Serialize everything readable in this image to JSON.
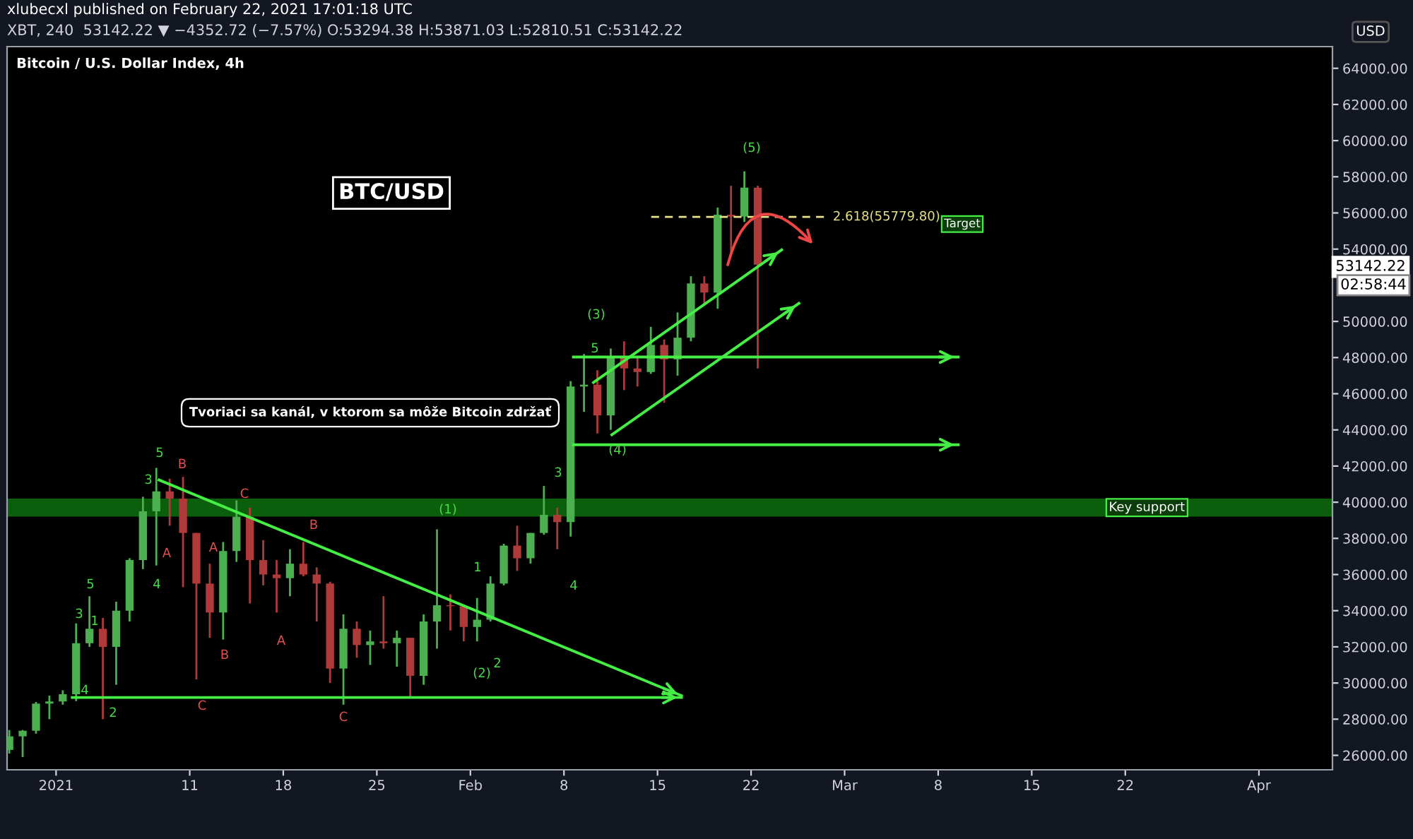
{
  "chart_data": {
    "type": "candlestick",
    "title": "Bitcoin / U.S. Dollar Index, 4h",
    "x": [
      "2020-12-28T12:00",
      "2020-12-29T12:00",
      "2020-12-30T12:00",
      "2020-12-31T12:00",
      "2021-01-01T12:00",
      "2021-01-02T12:00",
      "2021-01-03T12:00",
      "2021-01-04T12:00",
      "2021-01-05T12:00",
      "2021-01-06T12:00",
      "2021-01-07T12:00",
      "2021-01-08T12:00",
      "2021-01-09T12:00",
      "2021-01-10T12:00",
      "2021-01-11T12:00",
      "2021-01-12T12:00",
      "2021-01-13T12:00",
      "2021-01-14T12:00",
      "2021-01-15T12:00",
      "2021-01-16T12:00",
      "2021-01-17T12:00",
      "2021-01-18T12:00",
      "2021-01-19T12:00",
      "2021-01-20T12:00",
      "2021-01-21T12:00",
      "2021-01-22T12:00",
      "2021-01-23T12:00",
      "2021-01-24T12:00",
      "2021-01-25T12:00",
      "2021-01-26T12:00",
      "2021-01-27T12:00",
      "2021-01-28T12:00",
      "2021-01-29T12:00",
      "2021-01-30T12:00",
      "2021-01-31T12:00",
      "2021-02-01T12:00",
      "2021-02-02T12:00",
      "2021-02-03T12:00",
      "2021-02-04T12:00",
      "2021-02-05T12:00",
      "2021-02-06T12:00",
      "2021-02-07T12:00",
      "2021-02-08T12:00",
      "2021-02-09T12:00",
      "2021-02-10T12:00",
      "2021-02-11T12:00",
      "2021-02-12T12:00",
      "2021-02-13T12:00",
      "2021-02-14T12:00",
      "2021-02-15T12:00",
      "2021-02-16T12:00",
      "2021-02-17T12:00",
      "2021-02-18T12:00",
      "2021-02-19T12:00",
      "2021-02-20T12:00",
      "2021-02-21T12:00",
      "2021-02-22T12:00"
    ],
    "ohlc": [
      [
        26300,
        27400,
        26100,
        27050
      ],
      [
        27050,
        27400,
        25900,
        27360
      ],
      [
        27360,
        28950,
        27200,
        28860
      ],
      [
        28860,
        29300,
        28000,
        28980
      ],
      [
        28980,
        29600,
        28800,
        29380
      ],
      [
        29380,
        33300,
        29000,
        32200
      ],
      [
        32200,
        34800,
        32000,
        33000
      ],
      [
        33000,
        33600,
        28000,
        32000
      ],
      [
        32000,
        34500,
        29900,
        34000
      ],
      [
        34000,
        36900,
        33400,
        36800
      ],
      [
        36800,
        40300,
        36300,
        39500
      ],
      [
        39500,
        41900,
        36500,
        40600
      ],
      [
        40600,
        41300,
        38700,
        40200
      ],
      [
        40200,
        41400,
        35300,
        38300
      ],
      [
        38300,
        38300,
        30200,
        35500
      ],
      [
        35500,
        36600,
        32500,
        33900
      ],
      [
        33900,
        37800,
        32400,
        37300
      ],
      [
        37300,
        40100,
        36700,
        39200
      ],
      [
        39200,
        39700,
        34400,
        36800
      ],
      [
        36800,
        37900,
        35400,
        36000
      ],
      [
        36000,
        36800,
        33900,
        35800
      ],
      [
        35800,
        37400,
        34800,
        36600
      ],
      [
        36600,
        37800,
        35900,
        36000
      ],
      [
        36000,
        36400,
        33400,
        35500
      ],
      [
        35500,
        35600,
        30000,
        30800
      ],
      [
        30800,
        33800,
        28800,
        33000
      ],
      [
        33000,
        33400,
        31400,
        32100
      ],
      [
        32100,
        32900,
        31000,
        32300
      ],
      [
        32300,
        34800,
        31900,
        32200
      ],
      [
        32200,
        32900,
        30900,
        32500
      ],
      [
        32500,
        32500,
        29200,
        30400
      ],
      [
        30400,
        33800,
        29900,
        33400
      ],
      [
        33400,
        38500,
        31900,
        34300
      ],
      [
        34300,
        34900,
        32900,
        34250
      ],
      [
        34250,
        34300,
        32300,
        33100
      ],
      [
        33100,
        34700,
        32300,
        33500
      ],
      [
        33500,
        35900,
        33400,
        35500
      ],
      [
        35500,
        37700,
        35400,
        37600
      ],
      [
        37600,
        38700,
        36200,
        36900
      ],
      [
        36900,
        38300,
        36600,
        38300
      ],
      [
        38300,
        40900,
        38200,
        39300
      ],
      [
        39300,
        39700,
        37400,
        38900
      ],
      [
        38900,
        46700,
        38100,
        46400
      ],
      [
        46400,
        48200,
        45000,
        46500
      ],
      [
        46500,
        47300,
        43800,
        44800
      ],
      [
        44800,
        48500,
        44000,
        48000
      ],
      [
        48000,
        48900,
        46200,
        47400
      ],
      [
        47400,
        48000,
        46400,
        47200
      ],
      [
        47200,
        49700,
        47100,
        48700
      ],
      [
        48700,
        49000,
        45500,
        47900
      ],
      [
        47900,
        50500,
        47000,
        49100
      ],
      [
        49100,
        52500,
        48900,
        52100
      ],
      [
        52100,
        52500,
        50900,
        51600
      ],
      [
        51600,
        56300,
        50700,
        55900
      ],
      [
        55900,
        57500,
        53800,
        55800
      ],
      [
        55800,
        58300,
        55500,
        57400
      ],
      [
        57400,
        57500,
        47400,
        53142.22
      ]
    ],
    "colors": [
      "#4caf50",
      "#4caf50",
      "#4caf50",
      "#4caf50",
      "#4caf50",
      "#4caf50",
      "#4caf50",
      "#b03a3a",
      "#4caf50",
      "#4caf50",
      "#4caf50",
      "#4caf50",
      "#b03a3a",
      "#b03a3a",
      "#b03a3a",
      "#b03a3a",
      "#4caf50",
      "#4caf50",
      "#b03a3a",
      "#b03a3a",
      "#b03a3a",
      "#4caf50",
      "#b03a3a",
      "#b03a3a",
      "#b03a3a",
      "#4caf50",
      "#b03a3a",
      "#4caf50",
      "#b03a3a",
      "#4caf50",
      "#b03a3a",
      "#4caf50",
      "#4caf50",
      "#b03a3a",
      "#b03a3a",
      "#4caf50",
      "#4caf50",
      "#4caf50",
      "#b03a3a",
      "#4caf50",
      "#4caf50",
      "#b03a3a",
      "#4caf50",
      "#4caf50",
      "#b03a3a",
      "#4caf50",
      "#b03a3a",
      "#b03a3a",
      "#4caf50",
      "#b03a3a",
      "#4caf50",
      "#4caf50",
      "#b03a3a",
      "#4caf50",
      "#b03a3a",
      "#4caf50",
      "#b03a3a"
    ],
    "series": [
      {
        "type": "line",
        "color": "#44ee44",
        "x": [
          "2021-01-08T17:00",
          "2021-02-16T19:00"
        ],
        "values": [
          41230,
          29300
        ]
      },
      {
        "type": "line",
        "color": "#44ee44",
        "x": [
          "2021-01-02T05:00",
          "2021-02-16T19:00"
        ],
        "values": [
          29200,
          29200
        ]
      },
      {
        "type": "line",
        "color": "#44ee44",
        "x": [
          "2021-02-10T05:00",
          "2021-02-24T07:00"
        ],
        "values": [
          46620,
          53960
        ]
      },
      {
        "type": "line",
        "color": "#44ee44",
        "x": [
          "2021-02-11T14:00",
          "2021-02-25T14:00"
        ],
        "values": [
          43730,
          51000
        ]
      },
      {
        "type": "line",
        "color": "#44ee44",
        "x": [
          "2021-02-08T17:00",
          "2021-03-09T12:00"
        ],
        "values": [
          48030,
          48030
        ]
      },
      {
        "type": "line",
        "color": "#44ee44",
        "x": [
          "2021-02-08T17:00",
          "2021-03-09T12:00"
        ],
        "values": [
          43180,
          43180
        ]
      }
    ],
    "ref_lines": [
      {
        "axis": "y",
        "value": 55779.8,
        "label": "2.618(55779.80)",
        "color": "#e8e08a",
        "line_style": "dashed"
      }
    ],
    "bands": [
      {
        "axis": "y",
        "from": 39200,
        "to": 40200,
        "label": "Key support",
        "color": "#0b5e0b"
      }
    ],
    "annotations": [
      "xlubecxl published on February 22, 2021 17:01:18 UTC",
      "XBT, 240  53142.22 ▼ −4352.72 (−7.57%) O:53294.38 H:53871.03 L:52810.51 C:53142.22",
      "BTC/USD",
      "Tvoriaci sa kanál, v ktorom sa môže Bitcoin zdržať",
      "Target",
      "53142.22",
      "02:58:44",
      "USD",
      "5",
      "3",
      "B",
      "A",
      "4",
      "A",
      "C",
      "B",
      "C",
      "A",
      "B",
      "C",
      "5",
      "3",
      "1",
      "4",
      "2",
      "(1)",
      "1",
      "(2)",
      "2",
      "3",
      "4",
      "(3)",
      "5",
      "(4)",
      "(5)"
    ],
    "xlim": [
      "2020-12-28T08:00",
      "2021-04-06T12:00"
    ],
    "xticks": [
      {
        "value": "2021-01-01",
        "label": "2021"
      },
      {
        "value": "2021-01-11",
        "label": "11"
      },
      {
        "value": "2021-01-18",
        "label": "18"
      },
      {
        "value": "2021-01-25",
        "label": "25"
      },
      {
        "value": "2021-02-01",
        "label": "Feb"
      },
      {
        "value": "2021-02-08",
        "label": "8"
      },
      {
        "value": "2021-02-15",
        "label": "15"
      },
      {
        "value": "2021-02-22",
        "label": "22"
      },
      {
        "value": "2021-03-01",
        "label": "Mar"
      },
      {
        "value": "2021-03-08",
        "label": "8"
      },
      {
        "value": "2021-03-15",
        "label": "15"
      },
      {
        "value": "2021-03-22",
        "label": "22"
      },
      {
        "value": "2021-04-01",
        "label": "Apr"
      }
    ],
    "ylim": [
      25200,
      65200
    ],
    "yticks": [
      {
        "value": 26000,
        "label": "26000.00"
      },
      {
        "value": 28000,
        "label": "28000.00"
      },
      {
        "value": 30000,
        "label": "30000.00"
      },
      {
        "value": 32000,
        "label": "32000.00"
      },
      {
        "value": 34000,
        "label": "34000.00"
      },
      {
        "value": 36000,
        "label": "36000.00"
      },
      {
        "value": 38000,
        "label": "38000.00"
      },
      {
        "value": 40000,
        "label": "40000.00"
      },
      {
        "value": 42000,
        "label": "42000.00"
      },
      {
        "value": 44000,
        "label": "44000.00"
      },
      {
        "value": 46000,
        "label": "46000.00"
      },
      {
        "value": 48000,
        "label": "48000.00"
      },
      {
        "value": 50000,
        "label": "50000.00"
      },
      {
        "value": 54000,
        "label": "54000.00"
      },
      {
        "value": 56000,
        "label": "56000.00"
      },
      {
        "value": 58000,
        "label": "58000.00"
      },
      {
        "value": 60000,
        "label": "60000.00"
      },
      {
        "value": 62000,
        "label": "62000.00"
      },
      {
        "value": 64000,
        "label": "64000.00"
      }
    ],
    "grid": false,
    "legend": false
  }
}
